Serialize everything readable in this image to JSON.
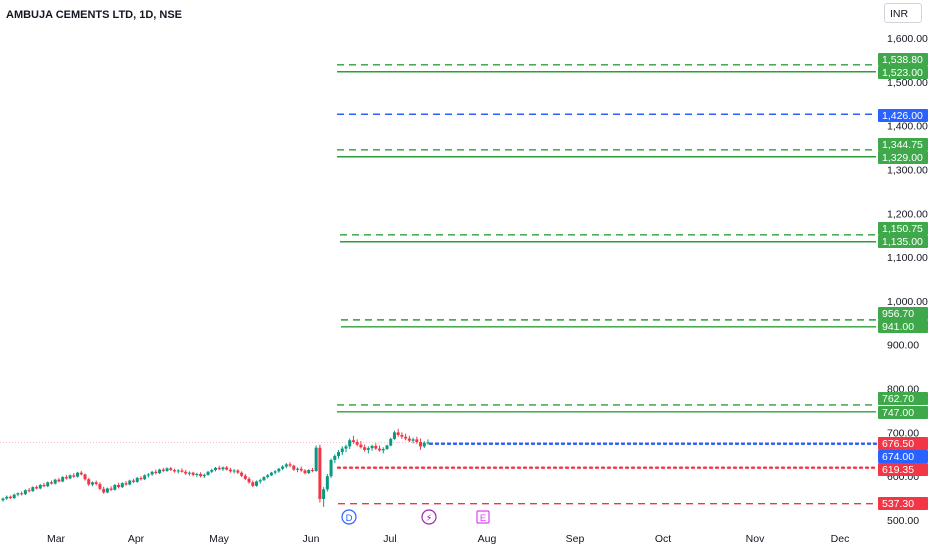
{
  "header": {
    "title": "AMBUJA CEMENTS LTD, 1D, NSE",
    "currency": "INR"
  },
  "colors": {
    "up": "#089981",
    "down": "#f23645",
    "green_line": "#2e9e3a",
    "blue_line": "#2962ff",
    "red_line": "#f23645"
  },
  "chart_data": {
    "type": "candlestick",
    "title": "AMBUJA CEMENTS LTD, 1D, NSE",
    "ylim": [
      490,
      1620
    ],
    "y_ticks": [
      500,
      600,
      700,
      800,
      900,
      1000,
      1100,
      1200,
      1300,
      1400,
      1500,
      1600
    ],
    "y_tick_labels": [
      "500.00",
      "600.00",
      "700.00",
      "800.00",
      "900.00",
      "1,000.00",
      "1,100.00",
      "1,200.00",
      "1,300.00",
      "1,400.00",
      "1,500.00",
      "1,600.00"
    ],
    "x_ticks": [
      "Mar",
      "Apr",
      "May",
      "Jun",
      "Jul",
      "Aug",
      "Sep",
      "Oct",
      "Nov",
      "Dec"
    ],
    "last_price": 676.5,
    "levels": [
      {
        "value": 1538.8,
        "label": "1,538.80",
        "style": "dashed",
        "color": "green"
      },
      {
        "value": 1523.0,
        "label": "1,523.00",
        "style": "solid",
        "color": "green"
      },
      {
        "value": 1426.0,
        "label": "1,426.00",
        "style": "dashed",
        "color": "blue"
      },
      {
        "value": 1344.75,
        "label": "1,344.75",
        "style": "dashed",
        "color": "green"
      },
      {
        "value": 1329.0,
        "label": "1,329.00",
        "style": "solid",
        "color": "green"
      },
      {
        "value": 1150.75,
        "label": "1,150.75",
        "style": "dashed",
        "color": "green"
      },
      {
        "value": 1135.0,
        "label": "1,135.00",
        "style": "solid",
        "color": "green"
      },
      {
        "value": 956.7,
        "label": "956.70",
        "style": "dashed",
        "color": "green"
      },
      {
        "value": 941.0,
        "label": "941.00",
        "style": "solid",
        "color": "green"
      },
      {
        "value": 762.7,
        "label": "762.70",
        "style": "dashed",
        "color": "green"
      },
      {
        "value": 747.0,
        "label": "747.00",
        "style": "solid",
        "color": "green"
      },
      {
        "value": 676.5,
        "label": "676.50",
        "style": "price",
        "color": "red"
      },
      {
        "value": 674.0,
        "label": "674.00",
        "style": "dotted",
        "color": "blue"
      },
      {
        "value": 619.35,
        "label": "619.35",
        "style": "dotted",
        "color": "red"
      },
      {
        "value": 537.3,
        "label": "537.30",
        "style": "dashed",
        "color": "red"
      }
    ],
    "event_markers": [
      {
        "label": "D",
        "type": "dividend"
      },
      {
        "label": "⚡",
        "type": "split"
      },
      {
        "label": "E",
        "type": "earnings"
      }
    ],
    "candles": [
      [
        545,
        551,
        542,
        549
      ],
      [
        549,
        556,
        546,
        553
      ],
      [
        553,
        556,
        548,
        550
      ],
      [
        550,
        560,
        548,
        558
      ],
      [
        558,
        563,
        554,
        561
      ],
      [
        561,
        565,
        556,
        559
      ],
      [
        559,
        570,
        557,
        568
      ],
      [
        568,
        573,
        563,
        566
      ],
      [
        566,
        577,
        564,
        575
      ],
      [
        575,
        579,
        570,
        572
      ],
      [
        572,
        582,
        570,
        580
      ],
      [
        580,
        585,
        575,
        577
      ],
      [
        577,
        588,
        575,
        586
      ],
      [
        586,
        590,
        581,
        583
      ],
      [
        583,
        594,
        581,
        592
      ],
      [
        592,
        596,
        586,
        588
      ],
      [
        588,
        600,
        586,
        598
      ],
      [
        598,
        603,
        592,
        595
      ],
      [
        595,
        604,
        593,
        602
      ],
      [
        602,
        607,
        596,
        599
      ],
      [
        599,
        610,
        597,
        608
      ],
      [
        608,
        612,
        602,
        604
      ],
      [
        604,
        606,
        590,
        593
      ],
      [
        593,
        596,
        578,
        581
      ],
      [
        581,
        588,
        577,
        586
      ],
      [
        586,
        590,
        579,
        582
      ],
      [
        582,
        586,
        568,
        571
      ],
      [
        571,
        576,
        560,
        563
      ],
      [
        563,
        574,
        561,
        572
      ],
      [
        572,
        577,
        566,
        569
      ],
      [
        569,
        582,
        567,
        580
      ],
      [
        580,
        585,
        572,
        575
      ],
      [
        575,
        586,
        573,
        584
      ],
      [
        584,
        589,
        578,
        581
      ],
      [
        581,
        592,
        579,
        590
      ],
      [
        590,
        594,
        584,
        587
      ],
      [
        587,
        598,
        585,
        596
      ],
      [
        596,
        600,
        590,
        593
      ],
      [
        593,
        604,
        591,
        602
      ],
      [
        602,
        607,
        597,
        604
      ],
      [
        604,
        612,
        601,
        610
      ],
      [
        610,
        615,
        604,
        607
      ],
      [
        607,
        617,
        605,
        615
      ],
      [
        615,
        619,
        609,
        612
      ],
      [
        612,
        620,
        610,
        618
      ],
      [
        618,
        621,
        612,
        614
      ],
      [
        614,
        617,
        608,
        611
      ],
      [
        611,
        616,
        606,
        613
      ],
      [
        613,
        618,
        608,
        610
      ],
      [
        610,
        614,
        603,
        606
      ],
      [
        606,
        611,
        601,
        608
      ],
      [
        608,
        610,
        600,
        603
      ],
      [
        603,
        608,
        598,
        605
      ],
      [
        605,
        609,
        597,
        600
      ],
      [
        600,
        606,
        596,
        603
      ],
      [
        603,
        612,
        601,
        610
      ],
      [
        610,
        617,
        607,
        614
      ],
      [
        614,
        621,
        611,
        619
      ],
      [
        619,
        624,
        614,
        616
      ],
      [
        616,
        622,
        612,
        620
      ],
      [
        620,
        623,
        613,
        615
      ],
      [
        615,
        619,
        608,
        611
      ],
      [
        611,
        616,
        606,
        613
      ],
      [
        613,
        616,
        605,
        608
      ],
      [
        608,
        611,
        598,
        601
      ],
      [
        601,
        605,
        591,
        594
      ],
      [
        594,
        598,
        583,
        586
      ],
      [
        586,
        590,
        575,
        578
      ],
      [
        578,
        590,
        576,
        588
      ],
      [
        588,
        594,
        583,
        591
      ],
      [
        591,
        600,
        589,
        598
      ],
      [
        598,
        605,
        595,
        602
      ],
      [
        602,
        610,
        600,
        608
      ],
      [
        608,
        614,
        604,
        611
      ],
      [
        611,
        619,
        608,
        617
      ],
      [
        617,
        625,
        614,
        622
      ],
      [
        622,
        630,
        618,
        627
      ],
      [
        627,
        632,
        620,
        624
      ],
      [
        624,
        626,
        612,
        615
      ],
      [
        615,
        620,
        609,
        617
      ],
      [
        617,
        622,
        610,
        613
      ],
      [
        613,
        616,
        604,
        607
      ],
      [
        607,
        616,
        605,
        614
      ],
      [
        614,
        619,
        609,
        612
      ],
      [
        612,
        670,
        610,
        665
      ],
      [
        665,
        672,
        540,
        548
      ],
      [
        548,
        575,
        530,
        570
      ],
      [
        570,
        605,
        565,
        600
      ],
      [
        600,
        640,
        596,
        637
      ],
      [
        637,
        650,
        630,
        646
      ],
      [
        646,
        660,
        640,
        655
      ],
      [
        655,
        668,
        648,
        663
      ],
      [
        663,
        672,
        655,
        668
      ],
      [
        668,
        686,
        662,
        682
      ],
      [
        682,
        692,
        674,
        678
      ],
      [
        678,
        684,
        668,
        672
      ],
      [
        672,
        680,
        663,
        666
      ],
      [
        666,
        672,
        656,
        660
      ],
      [
        660,
        668,
        652,
        664
      ],
      [
        664,
        672,
        658,
        669
      ],
      [
        669,
        675,
        660,
        663
      ],
      [
        663,
        670,
        656,
        659
      ],
      [
        659,
        666,
        652,
        662
      ],
      [
        662,
        672,
        660,
        670
      ],
      [
        670,
        688,
        668,
        685
      ],
      [
        685,
        704,
        683,
        700
      ],
      [
        700,
        708,
        690,
        694
      ],
      [
        694,
        700,
        685,
        690
      ],
      [
        690,
        697,
        682,
        686
      ],
      [
        686,
        692,
        678,
        681
      ],
      [
        681,
        688,
        675,
        684
      ],
      [
        684,
        690,
        674,
        678
      ],
      [
        678,
        686,
        660,
        668
      ],
      [
        668,
        680,
        664,
        676
      ],
      [
        676,
        684,
        672,
        677
      ]
    ]
  }
}
